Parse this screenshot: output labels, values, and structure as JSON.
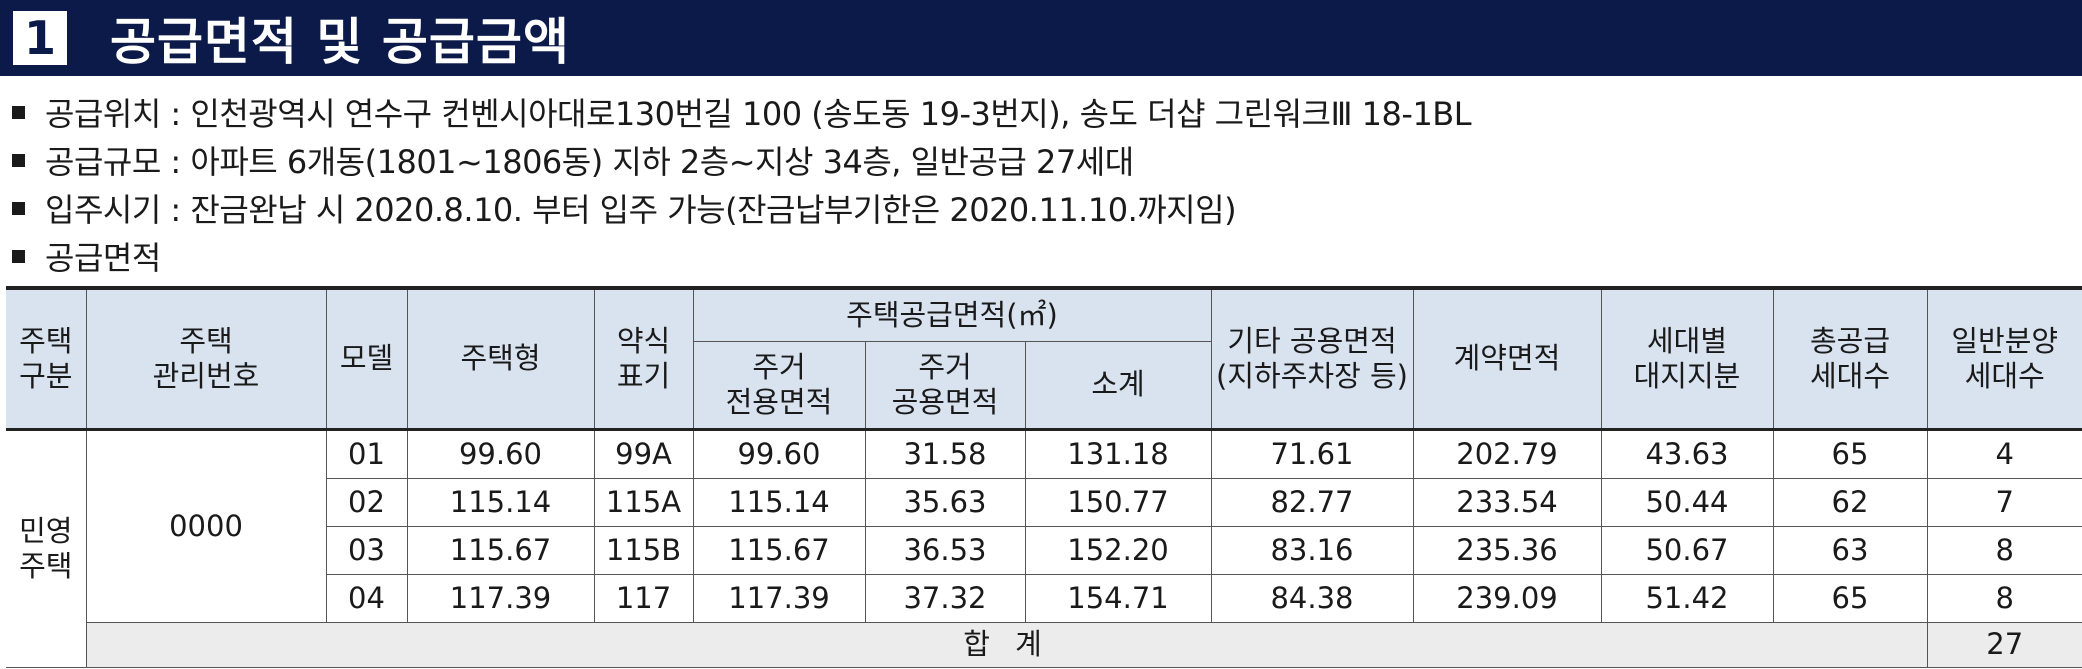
{
  "header": {
    "number": "1",
    "title": "공급면적 및 공급금액"
  },
  "bullets": [
    "공급위치 : 인천광역시 연수구 컨벤시아대로130번길 100 (송도동 19-3번지), 송도 더샵 그린워크Ⅲ 18-1BL",
    "공급규모 : 아파트 6개동(1801~1806동) 지하 2층~지상 34층, 일반공급 27세대",
    "입주시기 : 잔금완납 시 2020.8.10. 부터 입주 가능(잔금납부기한은 2020.11.10.까지임)",
    "공급면적"
  ],
  "table": {
    "headers": {
      "house_type_category": "주택\n구분",
      "house_mgmt_no": "주택\n관리번호",
      "model": "모델",
      "house_type": "주택형",
      "abbr": "약식\n표기",
      "supply_area_group": "주택공급면적(㎡)",
      "exclusive_area": "주거\n전용면적",
      "common_area": "주거\n공용면적",
      "subtotal": "소계",
      "other_common": "기타 공용면적\n(지하주차장 등)",
      "contract_area": "계약면적",
      "land_share": "세대별\n대지지분",
      "total_units": "총공급\n세대수",
      "general_units": "일반분양\n세대수"
    },
    "category": "민영\n주택",
    "mgmt_no": "0000",
    "rows": [
      {
        "model": "01",
        "house_type": "99.60",
        "abbr": "99A",
        "exclusive": "99.60",
        "common": "31.58",
        "subtotal": "131.18",
        "other": "71.61",
        "contract": "202.79",
        "land": "43.63",
        "total": "65",
        "general": "4"
      },
      {
        "model": "02",
        "house_type": "115.14",
        "abbr": "115A",
        "exclusive": "115.14",
        "common": "35.63",
        "subtotal": "150.77",
        "other": "82.77",
        "contract": "233.54",
        "land": "50.44",
        "total": "62",
        "general": "7"
      },
      {
        "model": "03",
        "house_type": "115.67",
        "abbr": "115B",
        "exclusive": "115.67",
        "common": "36.53",
        "subtotal": "152.20",
        "other": "83.16",
        "contract": "235.36",
        "land": "50.67",
        "total": "63",
        "general": "8"
      },
      {
        "model": "04",
        "house_type": "117.39",
        "abbr": "117",
        "exclusive": "117.39",
        "common": "37.32",
        "subtotal": "154.71",
        "other": "84.38",
        "contract": "239.09",
        "land": "51.42",
        "total": "65",
        "general": "8"
      }
    ],
    "total_row": {
      "label": "합 계",
      "general": "27"
    }
  }
}
